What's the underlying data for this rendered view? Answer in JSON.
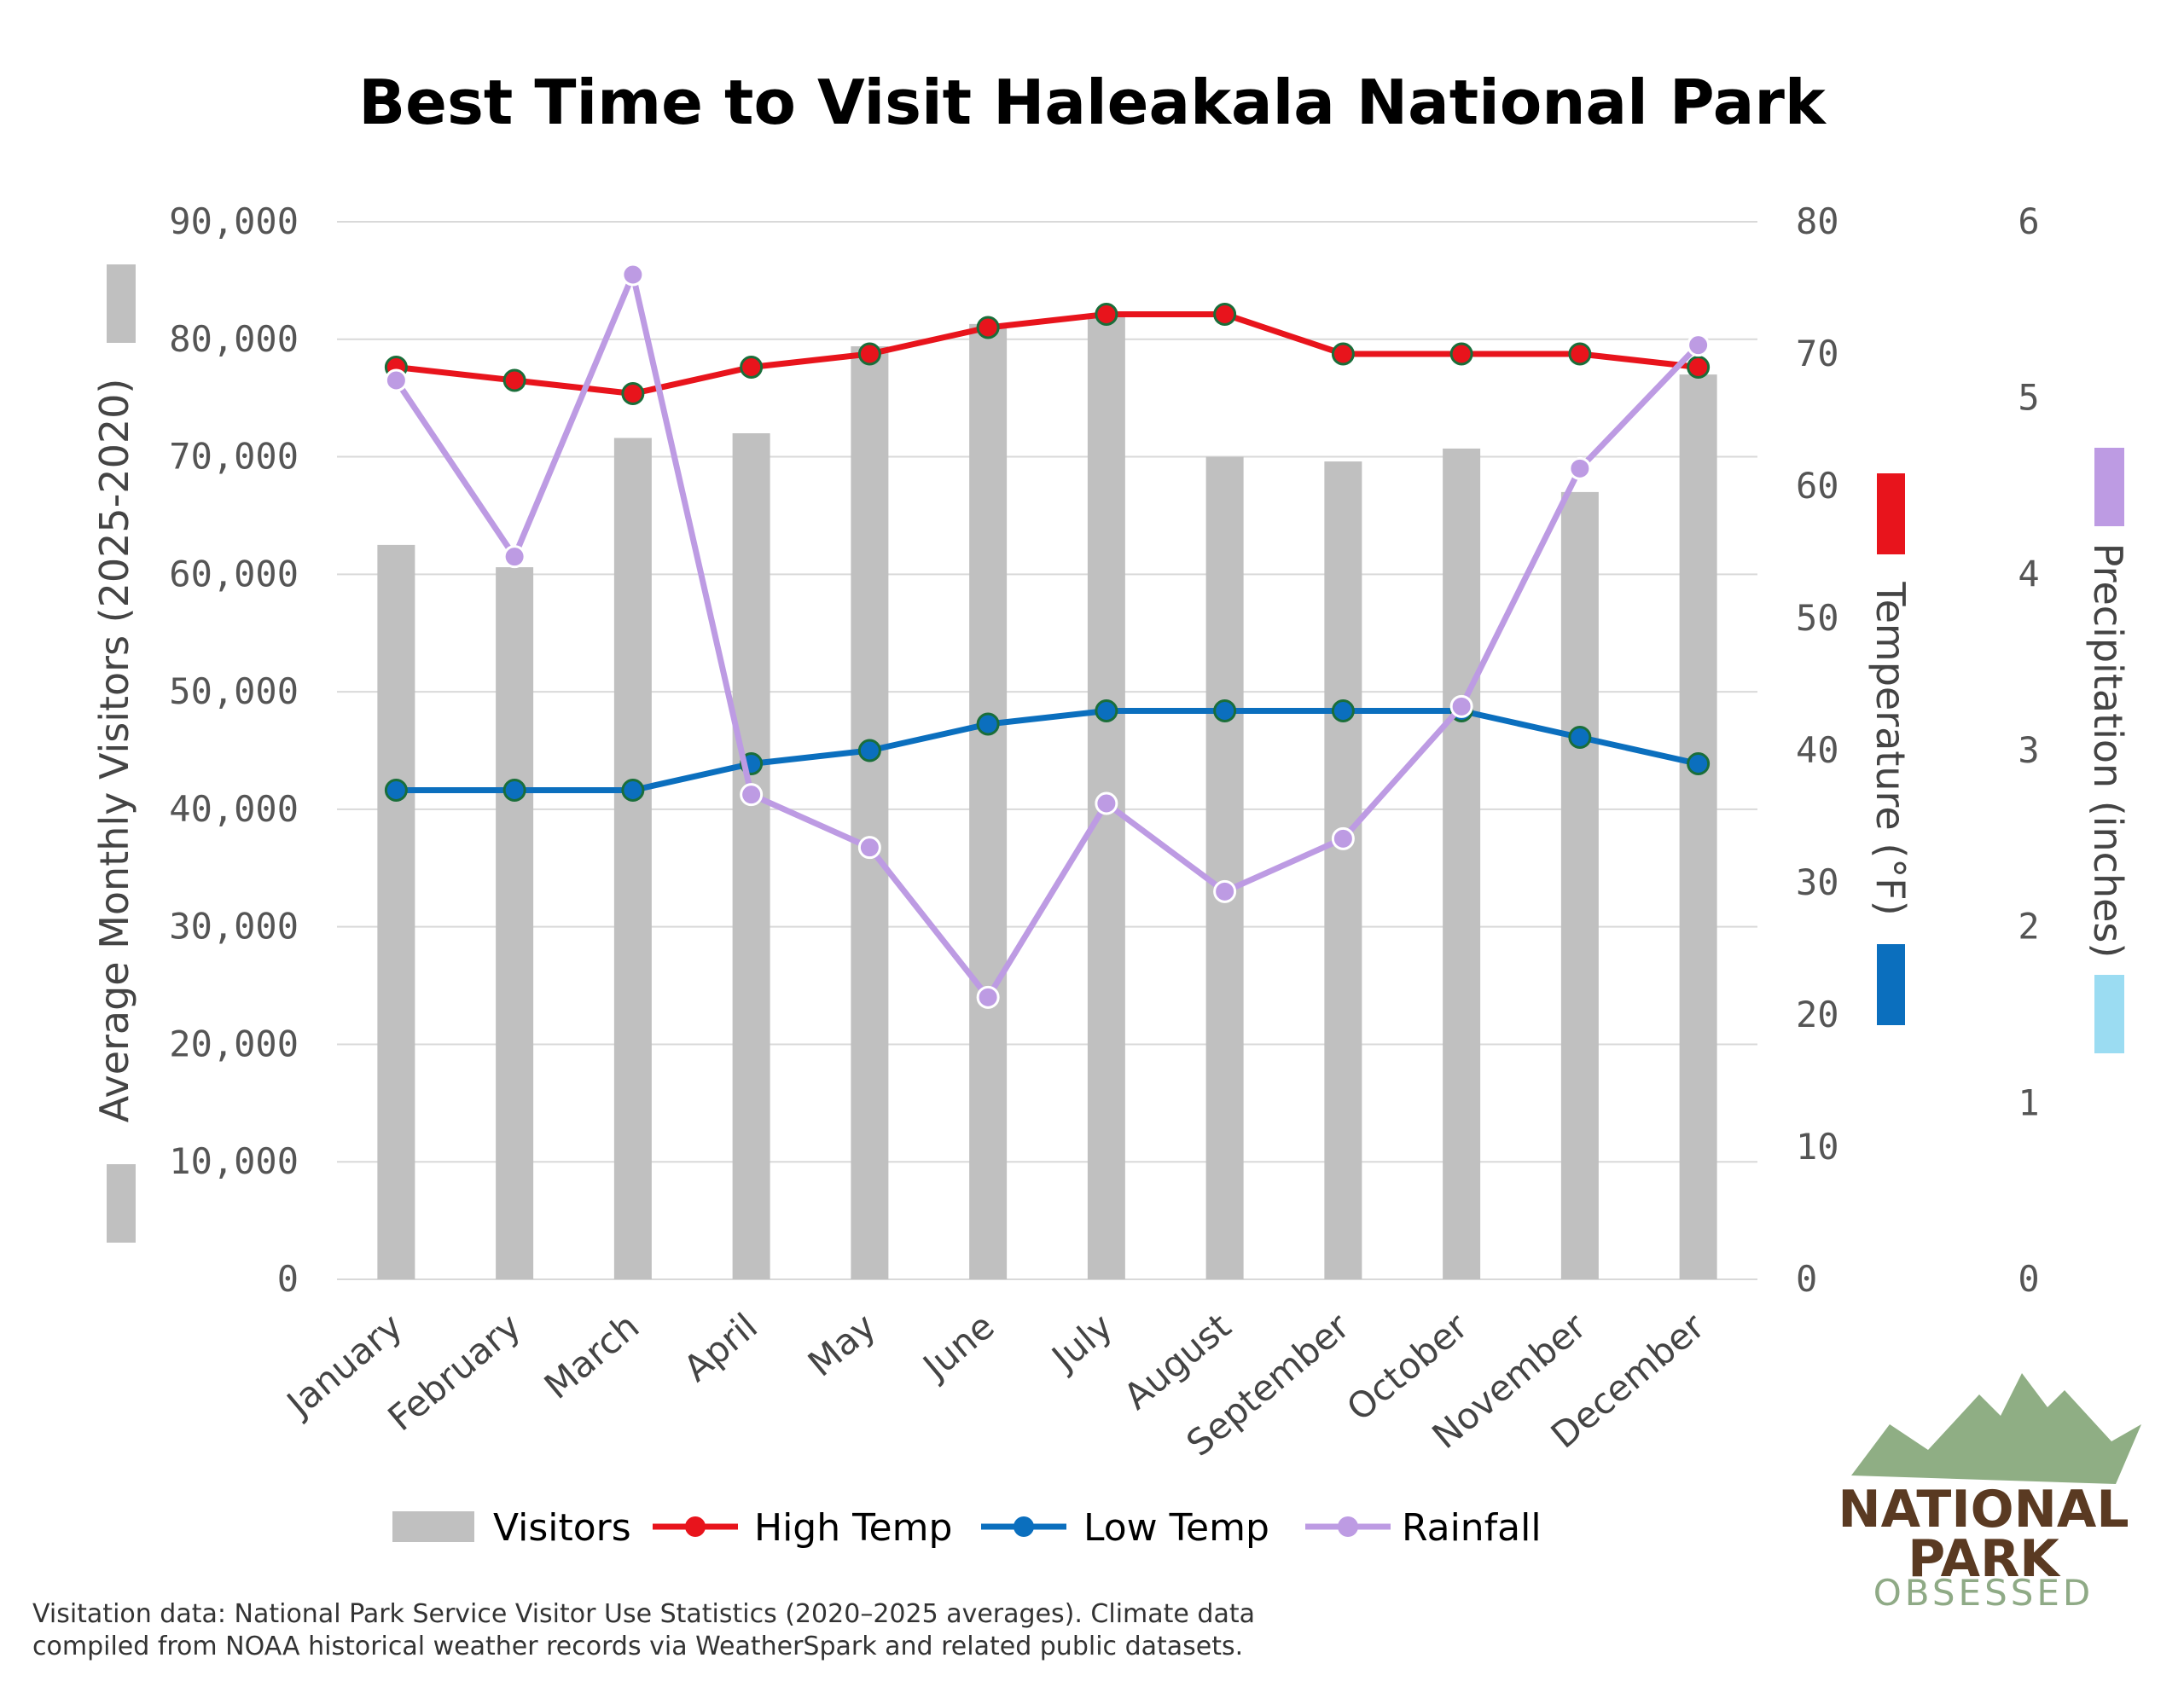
{
  "chart_data": {
    "type": "bar",
    "title": "Best Time to Visit Haleakala National Park",
    "categories": [
      "January",
      "February",
      "March",
      "April",
      "May",
      "June",
      "July",
      "August",
      "September",
      "October",
      "November",
      "December"
    ],
    "series": [
      {
        "name": "Visitors",
        "type": "bar",
        "axis": "left",
        "color": "#c0c0c0",
        "values": [
          62500,
          60600,
          71600,
          72000,
          79400,
          81300,
          82100,
          70000,
          69600,
          70700,
          67000,
          77000
        ]
      },
      {
        "name": "High Temp",
        "type": "line",
        "axis": "temperature",
        "color": "#e8141c",
        "values": [
          69,
          68,
          67,
          69,
          70,
          72,
          73,
          73,
          70,
          70,
          70,
          69
        ]
      },
      {
        "name": "Low Temp",
        "type": "line",
        "axis": "temperature",
        "color": "#0b6fbe",
        "values": [
          37,
          37,
          37,
          39,
          40,
          42,
          43,
          43,
          43,
          43,
          41,
          39
        ]
      },
      {
        "name": "Rainfall",
        "type": "line",
        "axis": "precipitation",
        "color": "#bd9be3",
        "values": [
          5.1,
          4.1,
          5.7,
          2.75,
          2.45,
          1.6,
          2.7,
          2.2,
          2.5,
          3.25,
          4.6,
          5.3
        ]
      }
    ],
    "axes": {
      "left": {
        "label": "Average Monthly Visitors (2025-2020)",
        "range": [
          0,
          90000
        ],
        "ticks": [
          "0",
          "10,000",
          "20,000",
          "30,000",
          "40,000",
          "50,000",
          "60,000",
          "70,000",
          "80,000",
          "90,000"
        ]
      },
      "temperature": {
        "label": "Temperature (°F)",
        "range": [
          0,
          80
        ],
        "ticks": [
          "0",
          "10",
          "20",
          "30",
          "40",
          "50",
          "60",
          "70",
          "80"
        ]
      },
      "precipitation": {
        "label": "Precipitation (inches)",
        "range": [
          0,
          6
        ],
        "ticks": [
          "0",
          "1",
          "2",
          "3",
          "4",
          "5",
          "6"
        ]
      }
    },
    "grid": true,
    "legend_position": "bottom"
  },
  "legend": [
    "Visitors",
    "High Temp",
    "Low Temp",
    "Rainfall"
  ],
  "source_note": [
    "Visitation data: National Park Service Visitor Use Statistics (2020–2025 averages). Climate data",
    "compiled from NOAA historical weather records via WeatherSpark and related public datasets."
  ],
  "logo": {
    "line1": "NATIONAL",
    "line2": "PARK",
    "line3": "OBSESSED"
  },
  "colors": {
    "visitors": "#c0c0c0",
    "high": "#e8141c",
    "low": "#0b6fbe",
    "rain": "#bd9be3",
    "rain_light": "#9bdcf2",
    "grid": "#d9d9d9",
    "marker_edge": "#1a6e3a"
  }
}
